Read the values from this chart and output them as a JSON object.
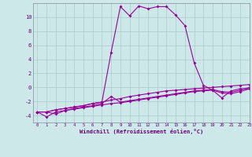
{
  "x_labels": [
    0,
    1,
    2,
    3,
    4,
    5,
    6,
    7,
    8,
    9,
    10,
    11,
    12,
    13,
    14,
    15,
    16,
    17,
    18,
    19,
    20,
    21,
    22,
    23
  ],
  "line1_y": [
    -3.5,
    -3.5,
    -3.2,
    -3.0,
    -2.8,
    -2.6,
    -2.3,
    -2.1,
    -1.8,
    -1.6,
    -1.3,
    -1.1,
    -0.9,
    -0.7,
    -0.5,
    -0.4,
    -0.3,
    -0.2,
    -0.1,
    0.0,
    0.1,
    0.2,
    0.3,
    0.4
  ],
  "line2_y": [
    -3.5,
    -4.2,
    -3.5,
    -3.3,
    -3.1,
    -2.9,
    -2.7,
    -2.5,
    -2.3,
    -2.2,
    -2.0,
    -1.8,
    -1.6,
    -1.4,
    -1.2,
    -1.0,
    -0.8,
    -0.6,
    -0.5,
    -0.4,
    -0.8,
    -0.9,
    -0.6,
    -0.2
  ],
  "line3_y": [
    -3.5,
    -3.5,
    -3.8,
    -3.3,
    -3.0,
    -2.8,
    -2.6,
    -2.3,
    -1.3,
    -2.1,
    -1.9,
    -1.7,
    -1.5,
    -1.3,
    -1.1,
    -0.9,
    -0.7,
    -0.5,
    -0.4,
    -0.3,
    -0.6,
    -0.7,
    -0.4,
    0.0
  ],
  "line4_y": [
    -3.5,
    -3.5,
    -3.2,
    -3.0,
    -2.8,
    -2.6,
    -2.3,
    -2.1,
    5.0,
    11.5,
    10.2,
    11.6,
    11.2,
    11.5,
    11.5,
    10.3,
    8.8,
    3.5,
    0.3,
    -0.4,
    -1.5,
    -0.5,
    -0.2,
    -0.2
  ],
  "bg_color": "#cce8e8",
  "line_color": "#990099",
  "grid_color": "#aacccc",
  "tick_color": "#660077",
  "xlabel": "Windchill (Refroidissement éolien,°C)",
  "ylim": [
    -5,
    12
  ],
  "xlim": [
    -0.5,
    23
  ],
  "yticks": [
    -4,
    -2,
    0,
    2,
    4,
    6,
    8,
    10
  ],
  "figwidth": 3.2,
  "figheight": 2.0,
  "dpi": 100
}
